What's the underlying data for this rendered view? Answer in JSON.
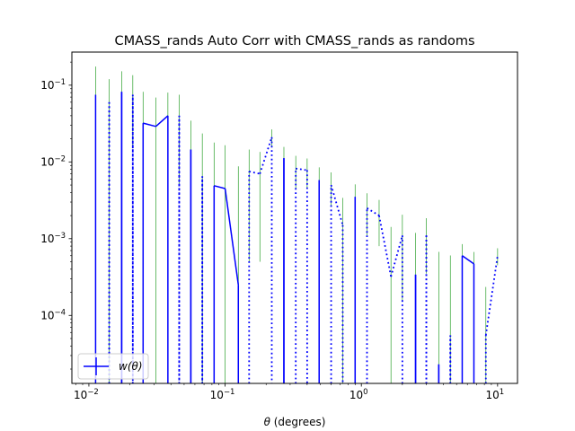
{
  "chart_data": {
    "type": "line",
    "title": "CMASS_rands Auto Corr with CMASS_rands as randoms",
    "xlabel_symbol": "θ",
    "xlabel_rest": " (degrees)",
    "xscale": "log",
    "yscale": "log",
    "xlim": [
      0.0075,
      14.0
    ],
    "ylim": [
      1.3e-05,
      0.27
    ],
    "x_ticks": [
      {
        "value": 0.01,
        "base": "10",
        "exp": "−2"
      },
      {
        "value": 0.1,
        "base": "10",
        "exp": "−1"
      },
      {
        "value": 1,
        "base": "10",
        "exp": "0"
      },
      {
        "value": 10,
        "base": "10",
        "exp": "1"
      }
    ],
    "y_ticks": [
      {
        "value": 0.1,
        "base": "10",
        "exp": "−1"
      },
      {
        "value": 0.01,
        "base": "10",
        "exp": "−2"
      },
      {
        "value": 0.001,
        "base": "10",
        "exp": "−3"
      },
      {
        "value": 0.0001,
        "base": "10",
        "exp": "−4"
      }
    ],
    "legend": {
      "label": "w(θ)",
      "placement": "lower-left"
    },
    "colors": {
      "line": "#0000ff",
      "errorbar": "#2ca02c"
    },
    "x": [
      0.0112,
      0.0141,
      0.0174,
      0.021,
      0.025,
      0.031,
      0.038,
      0.046,
      0.056,
      0.068,
      0.083,
      0.1,
      0.125,
      0.15,
      0.18,
      0.22,
      0.27,
      0.33,
      0.4,
      0.49,
      0.6,
      0.73,
      0.9,
      1.1,
      1.35,
      1.65,
      2.0,
      2.5,
      3.0,
      3.7,
      4.5,
      5.5,
      6.7,
      8.2,
      10.0
    ],
    "w": [
      0.075,
      -0.06,
      0.082,
      -0.075,
      0.032,
      0.029,
      0.04,
      -0.04,
      0.0145,
      -0.0065,
      0.0049,
      0.0045,
      0.00025,
      -0.0075,
      -0.007,
      -0.021,
      0.0112,
      -0.0082,
      -0.0078,
      0.0058,
      -0.005,
      -0.0015,
      0.0035,
      -0.0025,
      -0.002,
      -0.00032,
      -0.0011,
      0.00034,
      -0.0011,
      2.3e-05,
      -5.5e-05,
      0.0006,
      0.00047,
      -5.5e-05,
      -0.0006
    ],
    "err": [
      0.1,
      0.06,
      0.07,
      0.06,
      0.05,
      0.04,
      0.04,
      0.035,
      0.02,
      0.017,
      0.013,
      0.012,
      0.0085,
      0.007,
      0.0065,
      0.0055,
      0.0045,
      0.0038,
      0.0033,
      0.0027,
      0.0023,
      0.0019,
      0.0016,
      0.0014,
      0.0012,
      0.0011,
      0.00095,
      0.00085,
      0.00075,
      0.00065,
      0.00055,
      0.00025,
      0.0002,
      0.00018,
      0.00015
    ]
  }
}
